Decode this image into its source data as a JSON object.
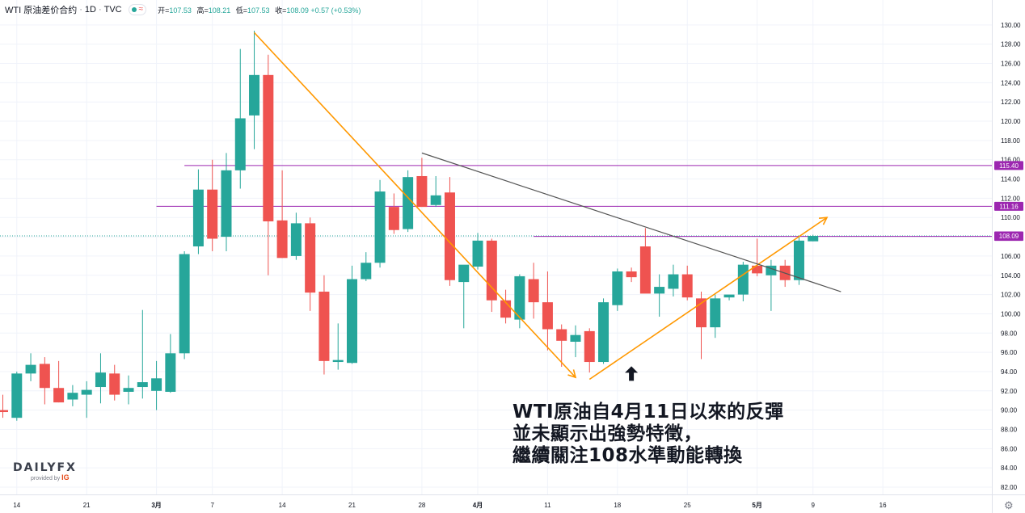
{
  "header": {
    "symbol": "WTI 原油差价合约",
    "interval": "1D",
    "source": "TVC",
    "ohlc_open_label": "开=",
    "ohlc_open": "107.53",
    "ohlc_high_label": "高=",
    "ohlc_high": "108.21",
    "ohlc_low_label": "低=",
    "ohlc_low": "107.53",
    "ohlc_close_label": "收=",
    "ohlc_close": "108.09",
    "ohlc_change": "+0.57 (+0.53%)"
  },
  "annotation": {
    "line1": "WTI原油自4月11日以來的反彈",
    "line2": "並未顯示出強勢特徵，",
    "line3": "繼續關注108水準動能轉換"
  },
  "logo": {
    "brand_left": "DAILY",
    "brand_right": "FX",
    "provided_by": "provided by",
    "ig": "IG"
  },
  "colors": {
    "up": "#26a69a",
    "down": "#ef5350",
    "level_line": "#9c27b0",
    "trend_orange": "#ff9800",
    "trend_gray": "#555555",
    "grid": "#f0f3fa"
  },
  "icons": {
    "settings": "gear-icon",
    "arrow": "up-arrow-icon"
  },
  "chart_data": {
    "type": "candlestick",
    "y_axis": {
      "ylim": [
        80.5,
        131.5
      ],
      "ticks": [
        "82.00",
        "84.00",
        "86.00",
        "88.00",
        "90.00",
        "92.00",
        "94.00",
        "96.00",
        "98.00",
        "100.00",
        "102.00",
        "104.00",
        "106.00",
        "108.00",
        "110.00",
        "112.00",
        "114.00",
        "116.00",
        "118.00",
        "120.00",
        "122.00",
        "124.00",
        "126.00",
        "128.00",
        "130.00"
      ],
      "position": "right"
    },
    "x_axis": {
      "ticks": [
        {
          "label": "14",
          "index": 1
        },
        {
          "label": "21",
          "index": 6
        },
        {
          "label": "3月",
          "index": 11,
          "bold": true
        },
        {
          "label": "7",
          "index": 15
        },
        {
          "label": "14",
          "index": 20
        },
        {
          "label": "21",
          "index": 25
        },
        {
          "label": "28",
          "index": 30
        },
        {
          "label": "4月",
          "index": 34,
          "bold": true
        },
        {
          "label": "11",
          "index": 39
        },
        {
          "label": "18",
          "index": 44
        },
        {
          "label": "25",
          "index": 49
        },
        {
          "label": "5月",
          "index": 54,
          "bold": true
        },
        {
          "label": "9",
          "index": 58
        },
        {
          "label": "16",
          "index": 63
        }
      ]
    },
    "candles": [
      {
        "o": 90.0,
        "h": 91.6,
        "l": 89.2,
        "c": 89.8
      },
      {
        "o": 89.2,
        "h": 94.0,
        "l": 88.9,
        "c": 93.8
      },
      {
        "o": 93.8,
        "h": 95.9,
        "l": 93.0,
        "c": 94.7
      },
      {
        "o": 94.8,
        "h": 95.5,
        "l": 90.6,
        "c": 92.3
      },
      {
        "o": 92.3,
        "h": 95.1,
        "l": 90.8,
        "c": 90.8
      },
      {
        "o": 91.1,
        "h": 92.6,
        "l": 90.4,
        "c": 91.8
      },
      {
        "o": 91.6,
        "h": 93.0,
        "l": 89.2,
        "c": 92.1
      },
      {
        "o": 92.4,
        "h": 95.9,
        "l": 90.7,
        "c": 93.9
      },
      {
        "o": 93.8,
        "h": 94.7,
        "l": 91.0,
        "c": 91.6
      },
      {
        "o": 91.9,
        "h": 93.6,
        "l": 90.6,
        "c": 92.3
      },
      {
        "o": 92.4,
        "h": 100.4,
        "l": 91.2,
        "c": 92.9
      },
      {
        "o": 92.0,
        "h": 95.1,
        "l": 90.0,
        "c": 93.3
      },
      {
        "o": 91.9,
        "h": 97.9,
        "l": 91.8,
        "c": 95.9
      },
      {
        "o": 95.9,
        "h": 106.5,
        "l": 95.3,
        "c": 106.2
      },
      {
        "o": 107.0,
        "h": 115.0,
        "l": 106.2,
        "c": 112.9
      },
      {
        "o": 112.9,
        "h": 116.0,
        "l": 106.5,
        "c": 107.8
      },
      {
        "o": 108.0,
        "h": 116.7,
        "l": 106.5,
        "c": 114.9
      },
      {
        "o": 114.9,
        "h": 127.5,
        "l": 113.0,
        "c": 120.3
      },
      {
        "o": 120.6,
        "h": 129.4,
        "l": 117.1,
        "c": 124.8
      },
      {
        "o": 124.8,
        "h": 126.9,
        "l": 104.0,
        "c": 109.6
      },
      {
        "o": 109.7,
        "h": 114.9,
        "l": 105.8,
        "c": 105.8
      },
      {
        "o": 106.0,
        "h": 110.5,
        "l": 105.6,
        "c": 109.4
      },
      {
        "o": 109.4,
        "h": 110.0,
        "l": 100.3,
        "c": 102.2
      },
      {
        "o": 102.3,
        "h": 104.0,
        "l": 93.7,
        "c": 95.1
      },
      {
        "o": 95.0,
        "h": 99.0,
        "l": 94.2,
        "c": 95.2
      },
      {
        "o": 94.9,
        "h": 105.0,
        "l": 94.8,
        "c": 103.6
      },
      {
        "o": 103.6,
        "h": 106.4,
        "l": 103.4,
        "c": 105.3
      },
      {
        "o": 105.3,
        "h": 113.9,
        "l": 104.8,
        "c": 112.7
      },
      {
        "o": 111.1,
        "h": 112.5,
        "l": 108.3,
        "c": 108.7
      },
      {
        "o": 108.8,
        "h": 114.9,
        "l": 108.5,
        "c": 114.2
      },
      {
        "o": 114.3,
        "h": 116.2,
        "l": 111.5,
        "c": 111.1
      },
      {
        "o": 111.3,
        "h": 114.3,
        "l": 111.1,
        "c": 112.3
      },
      {
        "o": 112.6,
        "h": 114.2,
        "l": 102.9,
        "c": 103.5
      },
      {
        "o": 103.3,
        "h": 104.8,
        "l": 98.5,
        "c": 105.1
      },
      {
        "o": 104.9,
        "h": 108.4,
        "l": 104.6,
        "c": 107.6
      },
      {
        "o": 107.6,
        "h": 107.8,
        "l": 100.2,
        "c": 101.4
      },
      {
        "o": 101.4,
        "h": 102.5,
        "l": 99.0,
        "c": 99.6
      },
      {
        "o": 99.4,
        "h": 104.1,
        "l": 98.5,
        "c": 103.9
      },
      {
        "o": 103.6,
        "h": 105.3,
        "l": 99.5,
        "c": 101.2
      },
      {
        "o": 101.2,
        "h": 104.4,
        "l": 96.2,
        "c": 98.4
      },
      {
        "o": 98.4,
        "h": 98.9,
        "l": 94.5,
        "c": 97.2
      },
      {
        "o": 97.1,
        "h": 98.8,
        "l": 95.5,
        "c": 97.8
      },
      {
        "o": 98.2,
        "h": 98.5,
        "l": 93.9,
        "c": 95.0
      },
      {
        "o": 95.0,
        "h": 101.6,
        "l": 94.8,
        "c": 101.2
      },
      {
        "o": 100.9,
        "h": 104.7,
        "l": 100.3,
        "c": 104.4
      },
      {
        "o": 104.4,
        "h": 104.8,
        "l": 103.3,
        "c": 103.8
      },
      {
        "o": 107.0,
        "h": 108.9,
        "l": 102.3,
        "c": 102.1
      },
      {
        "o": 102.1,
        "h": 104.1,
        "l": 99.7,
        "c": 102.8
      },
      {
        "o": 102.6,
        "h": 105.1,
        "l": 101.8,
        "c": 104.1
      },
      {
        "o": 104.1,
        "h": 105.0,
        "l": 101.4,
        "c": 101.7
      },
      {
        "o": 101.6,
        "h": 102.3,
        "l": 95.3,
        "c": 98.6
      },
      {
        "o": 98.6,
        "h": 102.0,
        "l": 97.5,
        "c": 101.6
      },
      {
        "o": 101.7,
        "h": 101.8,
        "l": 101.4,
        "c": 102.0
      },
      {
        "o": 102.0,
        "h": 105.4,
        "l": 101.3,
        "c": 105.1
      },
      {
        "o": 105.0,
        "h": 107.8,
        "l": 103.9,
        "c": 104.2
      },
      {
        "o": 104.0,
        "h": 105.6,
        "l": 100.3,
        "c": 105.0
      },
      {
        "o": 105.0,
        "h": 105.6,
        "l": 102.8,
        "c": 103.5
      },
      {
        "o": 103.5,
        "h": 108.1,
        "l": 103.0,
        "c": 107.6
      },
      {
        "o": 107.53,
        "h": 108.21,
        "l": 107.53,
        "c": 108.09
      }
    ],
    "level_lines": [
      {
        "value": 115.4,
        "label": "115.40",
        "start_index": 13
      },
      {
        "value": 111.16,
        "label": "111.16",
        "start_index": 11
      },
      {
        "value": 108.04,
        "label": "108.04",
        "start_index": 38
      }
    ],
    "last_price": {
      "value": 108.09,
      "label": "108.09"
    },
    "trendlines": [
      {
        "color": "orange",
        "from": {
          "index": 18,
          "value": 129.2
        },
        "to": {
          "index": 41,
          "value": 93.4
        },
        "arrow": true
      },
      {
        "color": "orange",
        "from": {
          "index": 42,
          "value": 93.2
        },
        "to": {
          "index": 59,
          "value": 110.0
        },
        "arrow": true
      },
      {
        "color": "gray",
        "from": {
          "index": 30,
          "value": 116.7
        },
        "to": {
          "index": 60,
          "value": 102.3
        },
        "arrow": false
      }
    ],
    "marker": {
      "type": "up-arrow",
      "index": 45,
      "value": 93.8
    }
  }
}
